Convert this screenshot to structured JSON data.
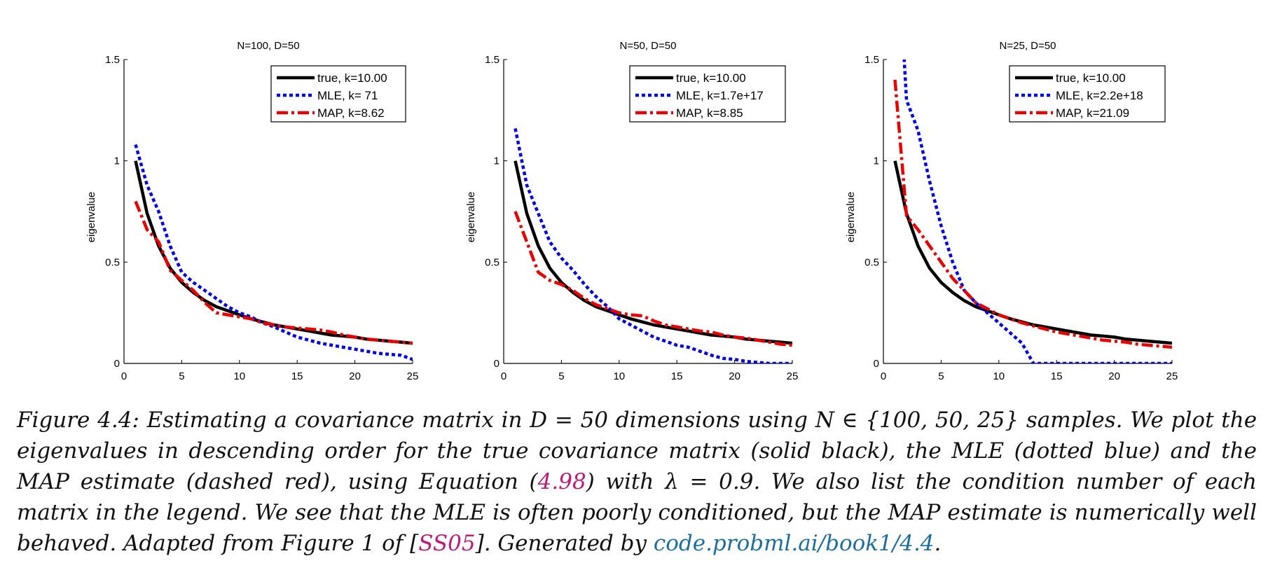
{
  "chart_data": [
    {
      "type": "line",
      "title": "N=100, D=50",
      "xlabel": "",
      "ylabel": "eigenvalue",
      "xlim": [
        0,
        25
      ],
      "ylim": [
        0,
        1.5
      ],
      "xticks": [
        "0",
        "5",
        "10",
        "15",
        "20",
        "25"
      ],
      "yticks": [
        "0",
        "0.5",
        "1",
        "1.5"
      ],
      "legend_position": "top-right",
      "series": [
        {
          "name": "true, k=10.00",
          "style": "solid",
          "color": "#000000",
          "x": [
            1,
            2,
            3,
            4,
            5,
            6,
            7,
            8,
            9,
            10,
            11,
            12,
            13,
            14,
            15,
            16,
            17,
            18,
            19,
            20,
            21,
            22,
            23,
            24,
            25
          ],
          "y": [
            1.0,
            0.74,
            0.58,
            0.47,
            0.4,
            0.35,
            0.31,
            0.28,
            0.26,
            0.24,
            0.22,
            0.205,
            0.19,
            0.18,
            0.17,
            0.16,
            0.15,
            0.14,
            0.135,
            0.13,
            0.12,
            0.115,
            0.11,
            0.105,
            0.1
          ]
        },
        {
          "name": "MLE, k=  71",
          "style": "dotted",
          "color": "#0000ee",
          "x": [
            1,
            2,
            3,
            4,
            5,
            6,
            7,
            8,
            9,
            10,
            11,
            12,
            13,
            14,
            15,
            16,
            17,
            18,
            19,
            20,
            21,
            22,
            23,
            24,
            25
          ],
          "y": [
            1.08,
            0.88,
            0.75,
            0.58,
            0.45,
            0.4,
            0.36,
            0.32,
            0.28,
            0.25,
            0.23,
            0.2,
            0.18,
            0.155,
            0.13,
            0.115,
            0.1,
            0.09,
            0.08,
            0.07,
            0.06,
            0.05,
            0.045,
            0.04,
            0.02
          ]
        },
        {
          "name": "MAP, k=8.62",
          "style": "dashdot",
          "color": "#ee0000",
          "x": [
            1,
            2,
            3,
            4,
            5,
            6,
            7,
            8,
            9,
            10,
            11,
            12,
            13,
            14,
            15,
            16,
            17,
            18,
            19,
            20,
            21,
            22,
            23,
            24,
            25
          ],
          "y": [
            0.8,
            0.66,
            0.6,
            0.46,
            0.41,
            0.36,
            0.3,
            0.25,
            0.24,
            0.23,
            0.22,
            0.2,
            0.19,
            0.18,
            0.175,
            0.17,
            0.165,
            0.155,
            0.14,
            0.13,
            0.12,
            0.115,
            0.11,
            0.105,
            0.1
          ]
        }
      ]
    },
    {
      "type": "line",
      "title": "N=50, D=50",
      "xlabel": "",
      "ylabel": "eigenvalue",
      "xlim": [
        0,
        25
      ],
      "ylim": [
        0,
        1.5
      ],
      "xticks": [
        "0",
        "5",
        "10",
        "15",
        "20",
        "25"
      ],
      "yticks": [
        "0",
        "0.5",
        "1",
        "1.5"
      ],
      "legend_position": "top-right",
      "series": [
        {
          "name": "true, k=10.00",
          "style": "solid",
          "color": "#000000",
          "x": [
            1,
            2,
            3,
            4,
            5,
            6,
            7,
            8,
            9,
            10,
            11,
            12,
            13,
            14,
            15,
            16,
            17,
            18,
            19,
            20,
            21,
            22,
            23,
            24,
            25
          ],
          "y": [
            1.0,
            0.74,
            0.58,
            0.47,
            0.4,
            0.35,
            0.31,
            0.28,
            0.26,
            0.24,
            0.22,
            0.205,
            0.19,
            0.18,
            0.17,
            0.16,
            0.15,
            0.14,
            0.135,
            0.13,
            0.12,
            0.115,
            0.11,
            0.105,
            0.1
          ]
        },
        {
          "name": "MLE, k=1.7e+17",
          "style": "dotted",
          "color": "#0000ee",
          "x": [
            1,
            2,
            3,
            4,
            5,
            6,
            7,
            8,
            9,
            10,
            11,
            12,
            13,
            14,
            15,
            16,
            17,
            18,
            19,
            20,
            21,
            22,
            23,
            24,
            25
          ],
          "y": [
            1.16,
            0.88,
            0.74,
            0.6,
            0.52,
            0.46,
            0.39,
            0.33,
            0.28,
            0.22,
            0.19,
            0.16,
            0.13,
            0.11,
            0.09,
            0.08,
            0.06,
            0.04,
            0.025,
            0.02,
            0.01,
            0.005,
            0.0,
            0.0,
            0.0
          ]
        },
        {
          "name": "MAP, k=8.85",
          "style": "dashdot",
          "color": "#ee0000",
          "x": [
            1,
            2,
            3,
            4,
            5,
            6,
            7,
            8,
            9,
            10,
            11,
            12,
            13,
            14,
            15,
            16,
            17,
            18,
            19,
            20,
            21,
            22,
            23,
            24,
            25
          ],
          "y": [
            0.75,
            0.6,
            0.45,
            0.41,
            0.39,
            0.36,
            0.32,
            0.29,
            0.27,
            0.25,
            0.24,
            0.235,
            0.21,
            0.19,
            0.18,
            0.17,
            0.16,
            0.155,
            0.14,
            0.13,
            0.125,
            0.115,
            0.105,
            0.095,
            0.09
          ]
        }
      ]
    },
    {
      "type": "line",
      "title": "N=25, D=50",
      "xlabel": "",
      "ylabel": "eigenvalue",
      "xlim": [
        0,
        25
      ],
      "ylim": [
        0,
        1.5
      ],
      "xticks": [
        "0",
        "5",
        "10",
        "15",
        "20",
        "25"
      ],
      "yticks": [
        "0",
        "0.5",
        "1",
        "1.5"
      ],
      "legend_position": "top-right",
      "series": [
        {
          "name": "true, k=10.00",
          "style": "solid",
          "color": "#000000",
          "x": [
            1,
            2,
            3,
            4,
            5,
            6,
            7,
            8,
            9,
            10,
            11,
            12,
            13,
            14,
            15,
            16,
            17,
            18,
            19,
            20,
            21,
            22,
            23,
            24,
            25
          ],
          "y": [
            1.0,
            0.74,
            0.58,
            0.47,
            0.4,
            0.35,
            0.31,
            0.28,
            0.26,
            0.24,
            0.22,
            0.205,
            0.19,
            0.18,
            0.17,
            0.16,
            0.15,
            0.14,
            0.135,
            0.13,
            0.12,
            0.115,
            0.11,
            0.105,
            0.1
          ]
        },
        {
          "name": "MLE, k=2.2e+18",
          "style": "dotted",
          "color": "#0000ee",
          "x": [
            1,
            1.8,
            2,
            3,
            4,
            5,
            6,
            7,
            8,
            9,
            10,
            11,
            12,
            13,
            14,
            15,
            16,
            17,
            18,
            19,
            20,
            21,
            22,
            23,
            24,
            25
          ],
          "y": [
            1.75,
            1.5,
            1.3,
            1.15,
            0.9,
            0.68,
            0.5,
            0.36,
            0.3,
            0.25,
            0.2,
            0.15,
            0.1,
            0.0,
            0.0,
            0.0,
            0.0,
            0.0,
            0.0,
            0.0,
            0.0,
            0.0,
            0.0,
            0.0,
            0.0,
            0.0
          ]
        },
        {
          "name": "MAP, k=21.09",
          "style": "dashdot",
          "color": "#ee0000",
          "x": [
            1,
            2,
            3,
            4,
            5,
            6,
            7,
            8,
            9,
            10,
            11,
            12,
            13,
            14,
            15,
            16,
            17,
            18,
            19,
            20,
            21,
            22,
            23,
            24,
            25
          ],
          "y": [
            1.4,
            0.73,
            0.66,
            0.58,
            0.5,
            0.42,
            0.36,
            0.3,
            0.27,
            0.24,
            0.22,
            0.2,
            0.185,
            0.17,
            0.155,
            0.145,
            0.135,
            0.125,
            0.115,
            0.11,
            0.105,
            0.095,
            0.09,
            0.085,
            0.08
          ]
        }
      ]
    }
  ],
  "caption": {
    "figure_label": "Figure 4.4:",
    "part1": "Estimating a covariance matrix in",
    "math_d": "D = 50",
    "part2": "dimensions using",
    "math_n": "N ∈ {100, 50, 25}",
    "part3": "samples. We plot the eigenvalues in descending order for the true covariance matrix (solid black), the MLE (dotted blue) and the MAP estimate (dashed red), using Equation (",
    "eq_ref": "4.98",
    "part4": ") with",
    "math_lambda": "λ = 0.9",
    "part5": ". We also list the condition number of each matrix in the legend. We see that the MLE is often poorly conditioned, but the MAP estimate is numerically well behaved. Adapted from Figure 1 of [",
    "cite_ref": "SS05",
    "part6": "]. Generated by",
    "link": "code.probml.ai/book1/4.4",
    "end": "."
  }
}
